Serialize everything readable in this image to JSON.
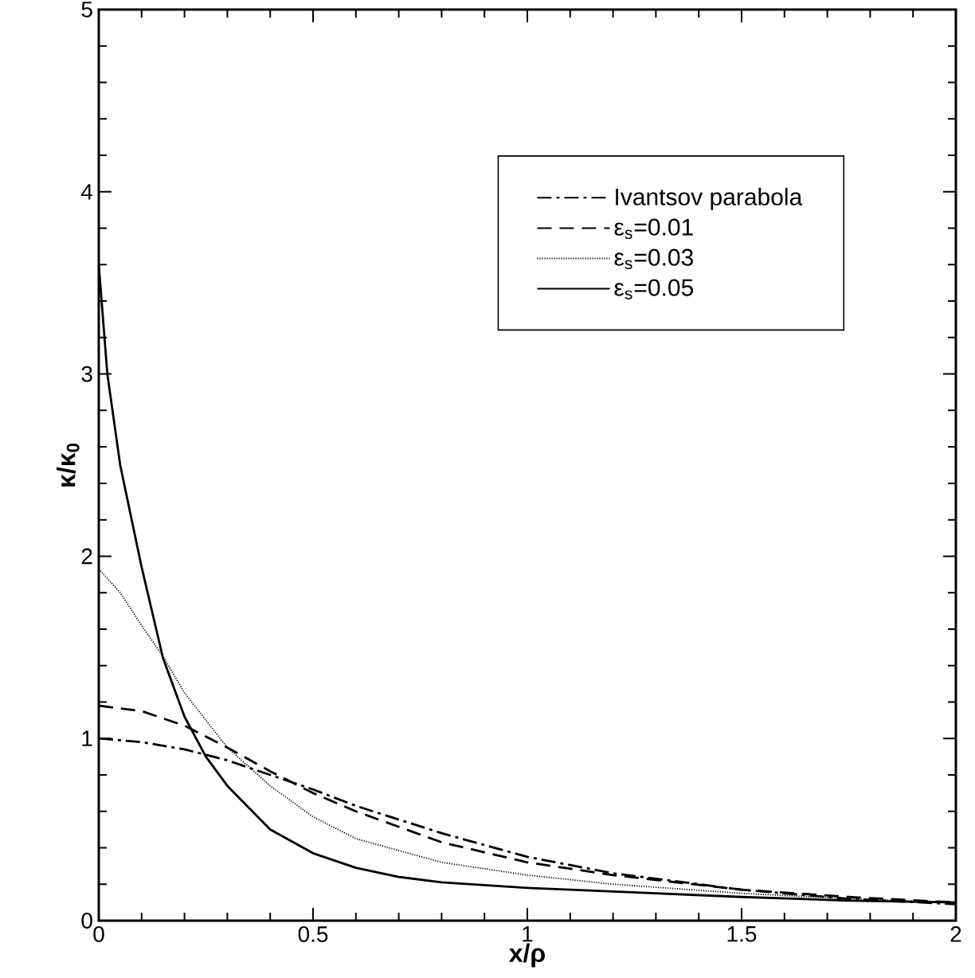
{
  "chart_data": {
    "type": "line",
    "xlabel": "x/ρ",
    "ylabel": "κ/κ$_{0}$",
    "xlim": [
      0,
      2
    ],
    "ylim": [
      0,
      5
    ],
    "xticks": [
      0,
      0.5,
      1,
      1.5,
      2
    ],
    "yticks": [
      0,
      1,
      2,
      3,
      4,
      5
    ],
    "grid": false,
    "legend": "top right",
    "series": [
      {
        "name": "Ivantsov parabola",
        "color": "#000000",
        "line_style": "dashdot",
        "x": [
          0,
          0.1,
          0.2,
          0.3,
          0.4,
          0.5,
          0.6,
          0.8,
          1,
          1.2,
          1.5,
          1.75,
          2
        ],
        "values": [
          1.0,
          0.98,
          0.94,
          0.88,
          0.8,
          0.72,
          0.63,
          0.48,
          0.35,
          0.26,
          0.17,
          0.12,
          0.09
        ]
      },
      {
        "name": "ε$_{s}$=0.01",
        "color": "#000000",
        "line_style": "dashed",
        "x": [
          0,
          0.1,
          0.2,
          0.3,
          0.4,
          0.5,
          0.6,
          0.8,
          1,
          1.2,
          1.5,
          1.75,
          2
        ],
        "values": [
          1.18,
          1.15,
          1.07,
          0.95,
          0.82,
          0.7,
          0.6,
          0.43,
          0.32,
          0.25,
          0.17,
          0.13,
          0.1
        ]
      },
      {
        "name": "ε$_{s}$=0.03",
        "color": "#000000",
        "line_style": "dotted",
        "x": [
          0,
          0.05,
          0.1,
          0.15,
          0.2,
          0.3,
          0.4,
          0.5,
          0.6,
          0.8,
          1,
          1.2,
          1.5,
          1.75,
          2
        ],
        "values": [
          1.93,
          1.8,
          1.62,
          1.45,
          1.25,
          0.95,
          0.74,
          0.57,
          0.45,
          0.32,
          0.25,
          0.2,
          0.15,
          0.12,
          0.1
        ]
      },
      {
        "name": "ε$_{s}$=0.05",
        "color": "#000000",
        "line_style": "solid",
        "x": [
          0,
          0.02,
          0.05,
          0.1,
          0.15,
          0.2,
          0.25,
          0.3,
          0.4,
          0.5,
          0.6,
          0.7,
          0.8,
          1,
          1.2,
          1.5,
          1.75,
          2
        ],
        "values": [
          3.6,
          3.0,
          2.5,
          1.94,
          1.44,
          1.12,
          0.9,
          0.74,
          0.5,
          0.37,
          0.29,
          0.24,
          0.21,
          0.18,
          0.16,
          0.13,
          0.11,
          0.1
        ]
      }
    ]
  }
}
